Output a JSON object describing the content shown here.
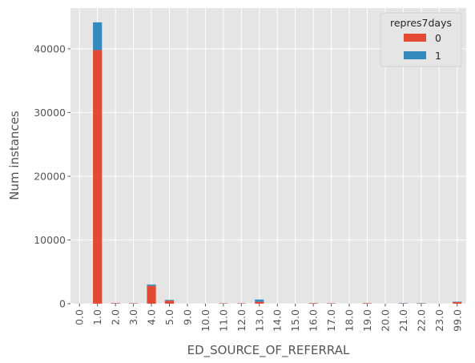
{
  "chart_data": {
    "type": "bar",
    "stacked": true,
    "categories": [
      "0.0",
      "1.0",
      "2.0",
      "3.0",
      "4.0",
      "5.0",
      "9.0",
      "10.0",
      "11.0",
      "12.0",
      "13.0",
      "14.0",
      "15.0",
      "16.0",
      "17.0",
      "18.0",
      "19.0",
      "20.0",
      "21.0",
      "22.0",
      "23.0",
      "99.0"
    ],
    "series": [
      {
        "name": "0",
        "color": "#E24A33",
        "values": [
          20,
          39800,
          80,
          60,
          2800,
          480,
          10,
          10,
          60,
          60,
          300,
          10,
          10,
          80,
          60,
          10,
          80,
          10,
          40,
          40,
          10,
          260
        ]
      },
      {
        "name": "1",
        "color": "#348ABD",
        "values": [
          0,
          4350,
          20,
          10,
          200,
          120,
          0,
          0,
          10,
          10,
          350,
          0,
          0,
          10,
          10,
          0,
          10,
          0,
          60,
          60,
          0,
          60
        ]
      }
    ],
    "title": "",
    "xlabel": "ED_SOURCE_OF_REFERRAL",
    "ylabel": "Num instances",
    "ylim": [
      0,
      46400
    ],
    "yticks": [
      0,
      10000,
      20000,
      30000,
      40000
    ],
    "grid": true,
    "legend": {
      "title": "repres7days",
      "placement": "top-right"
    }
  }
}
